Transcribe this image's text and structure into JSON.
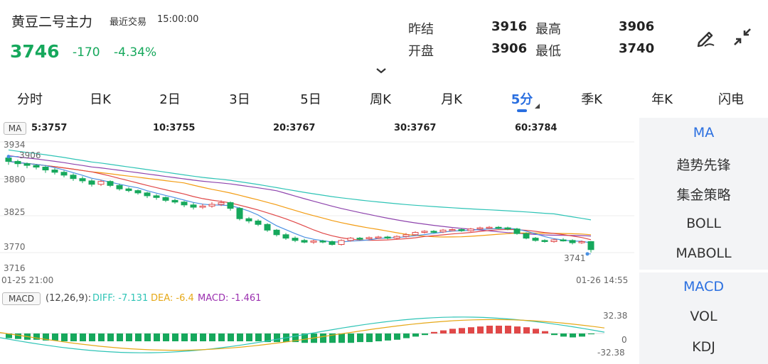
{
  "header": {
    "title": "黄豆二号主力",
    "trade_label": "最近交易",
    "trade_time": "15:00:00",
    "price": "3746",
    "change": "-170",
    "change_pct": "-4.34%",
    "stats": {
      "prev_settle_label": "昨结",
      "prev_settle": "3916",
      "high_label": "最高",
      "high": "3906",
      "open_label": "开盘",
      "open": "3906",
      "low_label": "最低",
      "low": "3740"
    },
    "icons": [
      "draw-pen-icon",
      "collapse-icon",
      "chevron-down-icon"
    ]
  },
  "tabs": [
    {
      "label": "分时"
    },
    {
      "label": "日K"
    },
    {
      "label": "2日"
    },
    {
      "label": "3日"
    },
    {
      "label": "5日"
    },
    {
      "label": "周K"
    },
    {
      "label": "月K"
    },
    {
      "label": "5分",
      "active": true
    },
    {
      "label": "季K"
    },
    {
      "label": "年K"
    },
    {
      "label": "闪电"
    }
  ],
  "ma_legend": {
    "badge": "MA",
    "items": [
      {
        "text": "5:3757",
        "color": "#4a90e2"
      },
      {
        "text": "10:3755",
        "color": "#e04848"
      },
      {
        "text": "20:3767",
        "color": "#f39c12"
      },
      {
        "text": "30:3767",
        "color": "#1f3fbf"
      },
      {
        "text": "60:3784",
        "color": "#2ec4b6"
      }
    ]
  },
  "macd_legend": {
    "badge": "MACD",
    "params": "(12,26,9):",
    "diff": "DIFF: -7.131",
    "dea": "DEA: -6.4",
    "macd": "MACD: -1.461",
    "colors": {
      "diff": "#2ec4b6",
      "dea": "#e6a817",
      "macd": "#9b30b0"
    }
  },
  "price_axis": [
    "3934",
    "3880",
    "3825",
    "3770",
    "3716"
  ],
  "time_axis": {
    "start": "01-25 21:00",
    "end": "01-26 14:55"
  },
  "price_markers": {
    "high": "3906",
    "low": "3741"
  },
  "macd_axis": {
    "top": "32.38",
    "mid": "0",
    "bottom": "-32.38"
  },
  "side_panel": {
    "main": [
      "MA",
      "趋势先锋",
      "集金策略",
      "BOLL",
      "MABOLL"
    ],
    "sub": [
      "MACD",
      "VOL",
      "KDJ"
    ]
  },
  "colors": {
    "up": "#e04848",
    "down": "#16a85c",
    "accent": "#2a6fe0"
  },
  "chart_data": {
    "type": "candlestick",
    "price_range": [
      3716,
      3934
    ],
    "candles": [
      [
        3906,
        3900,
        3908,
        3894
      ],
      [
        3900,
        3896,
        3903,
        3890
      ],
      [
        3896,
        3893,
        3898,
        3888
      ],
      [
        3893,
        3890,
        3895,
        3886
      ],
      [
        3890,
        3885,
        3892,
        3880
      ],
      [
        3885,
        3881,
        3888,
        3877
      ],
      [
        3881,
        3876,
        3884,
        3872
      ],
      [
        3876,
        3870,
        3879,
        3866
      ],
      [
        3870,
        3866,
        3874,
        3862
      ],
      [
        3866,
        3860,
        3869,
        3856
      ],
      [
        3860,
        3865,
        3868,
        3857
      ],
      [
        3865,
        3858,
        3867,
        3855
      ],
      [
        3858,
        3852,
        3861,
        3849
      ],
      [
        3852,
        3849,
        3855,
        3846
      ],
      [
        3849,
        3845,
        3851,
        3842
      ],
      [
        3845,
        3840,
        3847,
        3836
      ],
      [
        3840,
        3837,
        3843,
        3833
      ],
      [
        3837,
        3832,
        3839,
        3829
      ],
      [
        3832,
        3829,
        3835,
        3826
      ],
      [
        3829,
        3824,
        3831,
        3820
      ],
      [
        3824,
        3820,
        3828,
        3816
      ],
      [
        3820,
        3822,
        3826,
        3817
      ],
      [
        3822,
        3825,
        3829,
        3819
      ],
      [
        3825,
        3828,
        3832,
        3822
      ],
      [
        3828,
        3818,
        3830,
        3814
      ],
      [
        3818,
        3800,
        3820,
        3797
      ],
      [
        3800,
        3796,
        3803,
        3792
      ],
      [
        3796,
        3790,
        3799,
        3787
      ],
      [
        3790,
        3780,
        3792,
        3777
      ],
      [
        3780,
        3772,
        3782,
        3769
      ],
      [
        3772,
        3766,
        3775,
        3763
      ],
      [
        3766,
        3762,
        3769,
        3759
      ],
      [
        3762,
        3759,
        3765,
        3757
      ],
      [
        3759,
        3761,
        3763,
        3756
      ],
      [
        3761,
        3760,
        3763,
        3757
      ],
      [
        3760,
        3755,
        3762,
        3753
      ],
      [
        3755,
        3762,
        3764,
        3753
      ],
      [
        3762,
        3766,
        3768,
        3760
      ],
      [
        3766,
        3765,
        3768,
        3762
      ],
      [
        3765,
        3767,
        3769,
        3763
      ],
      [
        3767,
        3768,
        3770,
        3765
      ],
      [
        3768,
        3766,
        3770,
        3764
      ],
      [
        3766,
        3769,
        3771,
        3764
      ],
      [
        3769,
        3772,
        3775,
        3767
      ],
      [
        3772,
        3776,
        3778,
        3770
      ],
      [
        3776,
        3778,
        3780,
        3774
      ],
      [
        3778,
        3777,
        3780,
        3775
      ],
      [
        3777,
        3780,
        3782,
        3775
      ],
      [
        3780,
        3781,
        3783,
        3778
      ],
      [
        3781,
        3779,
        3783,
        3777
      ],
      [
        3779,
        3782,
        3784,
        3777
      ],
      [
        3782,
        3784,
        3786,
        3780
      ],
      [
        3784,
        3785,
        3787,
        3782
      ],
      [
        3785,
        3784,
        3787,
        3782
      ],
      [
        3784,
        3782,
        3786,
        3780
      ],
      [
        3782,
        3774,
        3784,
        3772
      ],
      [
        3774,
        3766,
        3776,
        3764
      ],
      [
        3766,
        3762,
        3768,
        3760
      ],
      [
        3762,
        3760,
        3764,
        3758
      ],
      [
        3760,
        3763,
        3765,
        3758
      ],
      [
        3763,
        3762,
        3766,
        3760
      ],
      [
        3762,
        3758,
        3764,
        3755
      ],
      [
        3758,
        3760,
        3762,
        3756
      ],
      [
        3760,
        3746,
        3761,
        3741
      ]
    ],
    "macd_hist": [
      -6,
      -7,
      -8,
      -8,
      -9,
      -9,
      -10,
      -10,
      -10,
      -10,
      -10,
      -10,
      -10,
      -10,
      -10,
      -10,
      -10,
      -10,
      -10,
      -10,
      -10,
      -10,
      -10,
      -10,
      -10,
      -10,
      -10,
      -10,
      -11,
      -11,
      -11,
      -11,
      -12,
      -12,
      -12,
      -12,
      -12,
      -12,
      -11,
      -11,
      -10,
      -9,
      -8,
      -6,
      -4,
      -2,
      2,
      4,
      6,
      7,
      8,
      9,
      10,
      10,
      10,
      9,
      8,
      6,
      3,
      -2,
      -4,
      -5,
      -4,
      -1
    ]
  }
}
